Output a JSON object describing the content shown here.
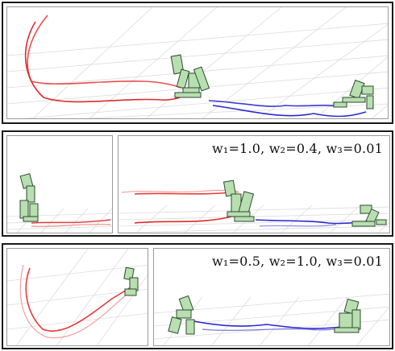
{
  "row2": {
    "weights_label": "w₁=1.0, w₂=0.4, w₃=0.01"
  },
  "row3": {
    "weights_label": "w₁=0.5, w₂=1.0, w₃=0.01"
  },
  "colors": {
    "trajectory_past": "#e02a2a",
    "trajectory_future": "#2a2ad0",
    "character_fill": "#b7dfb0",
    "character_stroke": "#2f4a2f",
    "grid": "#d8d8d8"
  }
}
